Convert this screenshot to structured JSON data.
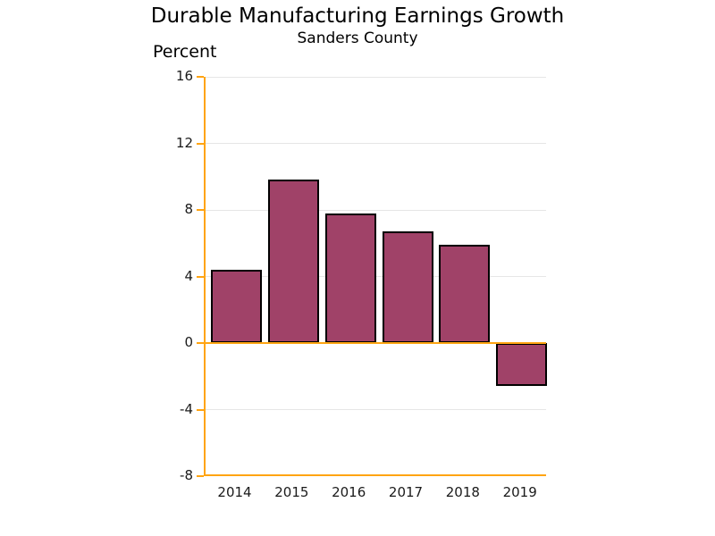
{
  "chart_data": {
    "type": "bar",
    "title": "Durable Manufacturing Earnings Growth",
    "subtitle": "Sanders County",
    "ylabel": "Percent",
    "xlabel": "",
    "categories": [
      "2014",
      "2015",
      "2016",
      "2017",
      "2018",
      "2019"
    ],
    "values": [
      4.4,
      9.8,
      7.8,
      6.7,
      5.9,
      -2.6
    ],
    "yticks": [
      16,
      12,
      8,
      4,
      0,
      -4,
      -8
    ],
    "ylim": [
      -8,
      16
    ],
    "grid": true,
    "legend": "none",
    "colors": {
      "bar_fill": "#A04268",
      "bar_border": "#000000",
      "axis_line": "#FFA412",
      "gridline": "#E6E6E6",
      "text": "#000000"
    }
  }
}
